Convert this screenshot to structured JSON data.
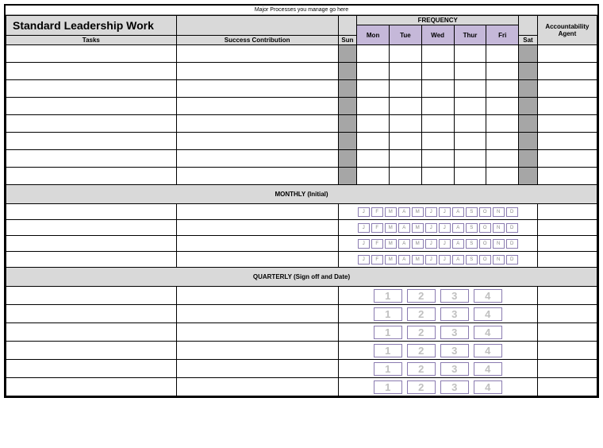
{
  "top_note": "Major Processes you manage go here",
  "title": "Standard Leadership Work",
  "headers": {
    "tasks": "Tasks",
    "success": "Success Contribution",
    "frequency": "FREQUENCY",
    "accountability": "Accountability Agent",
    "sun": "Sun",
    "mon": "Mon",
    "tue": "Tue",
    "wed": "Wed",
    "thur": "Thur",
    "fri": "Fri",
    "sat": "Sat"
  },
  "sections": {
    "monthly": "MONTHLY (Initial)",
    "quarterly": "QUARTERLY (Sign off and Date)"
  },
  "months": [
    "J",
    "F",
    "M",
    "A",
    "M",
    "J",
    "J",
    "A",
    "S",
    "O",
    "N",
    "D"
  ],
  "quarters": [
    "1",
    "2",
    "3",
    "4"
  ],
  "counts": {
    "task_rows": 8,
    "monthly_rows": 4,
    "quarterly_rows": 6
  },
  "colors": {
    "gray": "#d9d9d9",
    "dark_gray": "#a6a6a6",
    "purple": "#c5b8d9",
    "purple_border": "#8a7bb0",
    "q_text": "#c0c0c0"
  }
}
